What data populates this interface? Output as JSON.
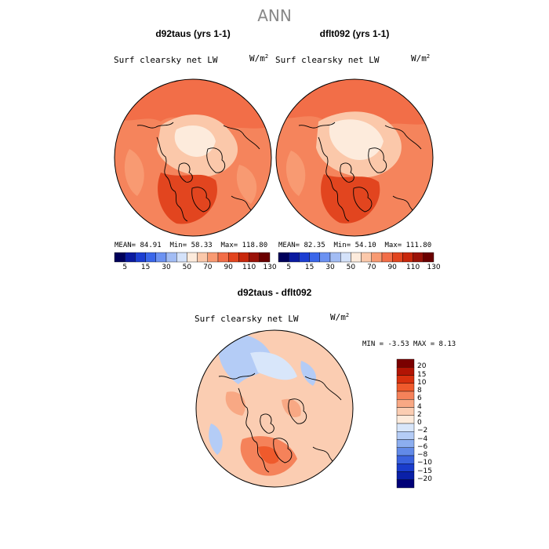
{
  "figure": {
    "title": "ANN"
  },
  "panels": [
    {
      "case_title": "d92taus (yrs 1-1)",
      "variable": "Surf clearsky net LW",
      "units_base": "W/m",
      "units_exp": "2",
      "stats": {
        "mean_label": "MEAN=",
        "mean": "84.91",
        "min_label": "Min=",
        "min": "58.33",
        "max_label": "Max=",
        "max": "118.80"
      }
    },
    {
      "case_title": "dflt092 (yrs 1-1)",
      "variable": "Surf clearsky net LW",
      "units_base": "W/m",
      "units_exp": "2",
      "stats": {
        "mean_label": "MEAN=",
        "mean": "82.35",
        "min_label": "Min=",
        "min": "54.10",
        "max_label": "Max=",
        "max": "111.80"
      }
    }
  ],
  "abs_colorbar": {
    "colors": [
      "#00005a",
      "#0a1aa0",
      "#1c3ed2",
      "#3a66ea",
      "#6c92f2",
      "#a2bcf4",
      "#d4e2fa",
      "#fdebdc",
      "#fbc8aa",
      "#f89a72",
      "#f26e48",
      "#e2451f",
      "#c8280c",
      "#9a1208",
      "#6a0000"
    ],
    "ticks": [
      "5",
      "15",
      "30",
      "50",
      "70",
      "90",
      "110",
      "130"
    ]
  },
  "difference": {
    "title": "d92taus - dflt092",
    "variable": "Surf clearsky net LW",
    "units_base": "W/m",
    "units_exp": "2",
    "stats": {
      "min_label": "MIN =",
      "min": "-3.53",
      "max_label": "MAX =",
      "max": "8.13"
    }
  },
  "diff_colorbar": {
    "colors": [
      "#7a0000",
      "#b21404",
      "#d8300e",
      "#ef5a2c",
      "#f5825a",
      "#f8a884",
      "#fbcdb2",
      "#fdebdc",
      "#d8e6fa",
      "#b4ccf6",
      "#8caef0",
      "#628ae8",
      "#3a62de",
      "#1a3ccc",
      "#0a20a8",
      "#000078"
    ],
    "labels": [
      "20",
      "15",
      "10",
      "8",
      "6",
      "4",
      "2",
      "0",
      "−2",
      "−4",
      "−6",
      "−8",
      "−10",
      "−15",
      "−20"
    ]
  }
}
